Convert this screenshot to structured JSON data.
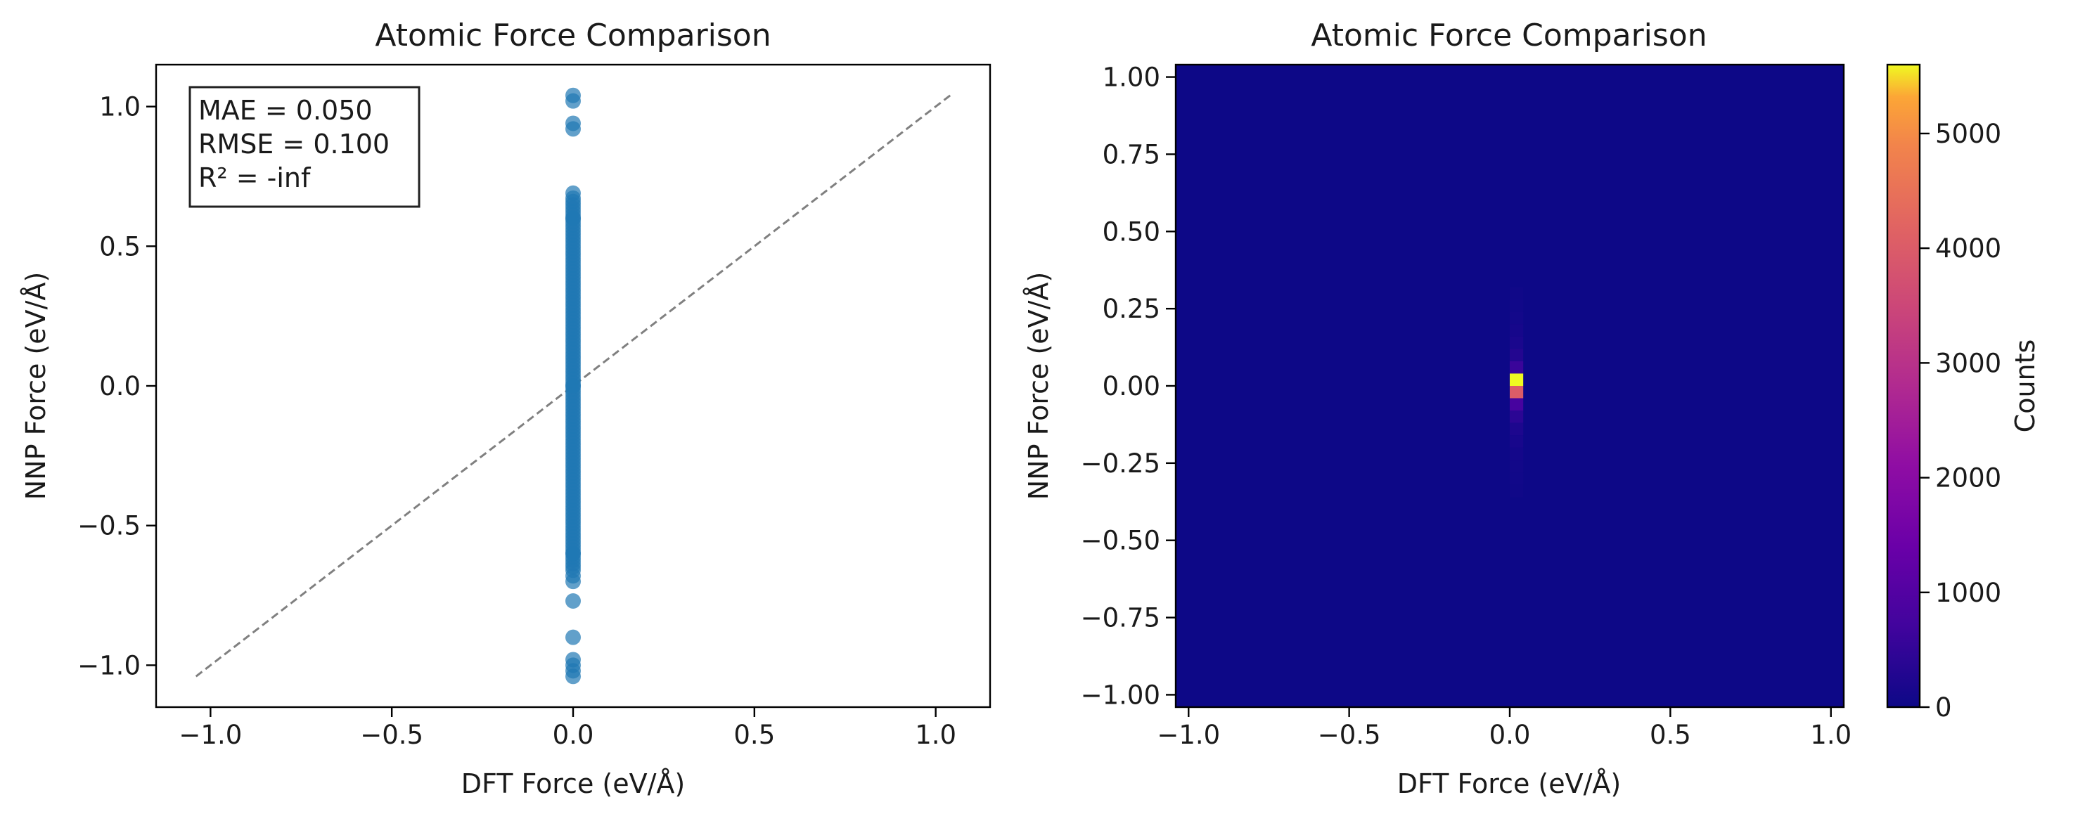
{
  "chart_data": [
    {
      "type": "scatter",
      "title": "Atomic Force Comparison",
      "xlabel": "DFT Force (eV/Å)",
      "ylabel": "NNP Force (eV/Å)",
      "xlim": [
        -1.15,
        1.15
      ],
      "ylim": [
        -1.15,
        1.15
      ],
      "xticks": [
        -1.0,
        -0.5,
        0.0,
        0.5,
        1.0
      ],
      "xtick_labels": [
        "−1.0",
        "−0.5",
        "0.0",
        "0.5",
        "1.0"
      ],
      "yticks": [
        -1.0,
        -0.5,
        0.0,
        0.5,
        1.0
      ],
      "ytick_labels": [
        "−1.0",
        "−0.5",
        "0.0",
        "0.5",
        "1.0"
      ],
      "point_color": "#1f77b4",
      "reference_line": {
        "x": [
          -1.04,
          1.04
        ],
        "y": [
          -1.04,
          1.04
        ],
        "color": "#808080",
        "style": "dashed"
      },
      "stats": [
        "MAE = 0.050",
        "RMSE = 0.100",
        "R² = -inf"
      ],
      "points": {
        "x": [
          0,
          0,
          0,
          0,
          0,
          0,
          0,
          0,
          0,
          0,
          0,
          0,
          0,
          0,
          0,
          0
        ],
        "y": [
          1.04,
          1.02,
          0.94,
          0.92,
          0.69,
          -0.68,
          -0.7,
          -0.77,
          -0.9,
          -0.98,
          -1.0,
          -1.02,
          -1.04,
          0.6,
          -0.6,
          0.0
        ]
      },
      "dense_band": {
        "x": 0,
        "y_from": -0.66,
        "y_to": 0.68
      }
    },
    {
      "type": "heatmap",
      "title": "Atomic Force Comparison",
      "xlabel": "DFT Force (eV/Å)",
      "ylabel": "NNP Force (eV/Å)",
      "xlim": [
        -1.04,
        1.04
      ],
      "ylim": [
        -1.04,
        1.04
      ],
      "xticks": [
        -1.0,
        -0.5,
        0.0,
        0.5,
        1.0
      ],
      "xtick_labels": [
        "−1.0",
        "−0.5",
        "0.0",
        "0.5",
        "1.0"
      ],
      "yticks": [
        1.0,
        0.75,
        0.5,
        0.25,
        0.0,
        -0.25,
        -0.5,
        -0.75,
        -1.0
      ],
      "ytick_labels": [
        "1.00",
        "0.75",
        "0.50",
        "0.25",
        "0.00",
        "−0.25",
        "−0.50",
        "−0.75",
        "−1.00"
      ],
      "colormap": "plasma",
      "background_color": "#0d0887",
      "bins_column": {
        "x_from": 0.0,
        "x_to": 0.042,
        "cells": [
          {
            "y_from": 0.28,
            "y_to": 0.32,
            "count": 40
          },
          {
            "y_from": 0.24,
            "y_to": 0.28,
            "count": 60
          },
          {
            "y_from": 0.2,
            "y_to": 0.24,
            "count": 80
          },
          {
            "y_from": 0.16,
            "y_to": 0.2,
            "count": 120
          },
          {
            "y_from": 0.12,
            "y_to": 0.16,
            "count": 180
          },
          {
            "y_from": 0.08,
            "y_to": 0.12,
            "count": 300
          },
          {
            "y_from": 0.04,
            "y_to": 0.08,
            "count": 600
          },
          {
            "y_from": 0.0,
            "y_to": 0.04,
            "count": 5600
          },
          {
            "y_from": -0.04,
            "y_to": 0.0,
            "count": 4000
          },
          {
            "y_from": -0.08,
            "y_to": -0.04,
            "count": 800
          },
          {
            "y_from": -0.12,
            "y_to": -0.08,
            "count": 400
          },
          {
            "y_from": -0.16,
            "y_to": -0.12,
            "count": 220
          },
          {
            "y_from": -0.2,
            "y_to": -0.16,
            "count": 150
          },
          {
            "y_from": -0.24,
            "y_to": -0.2,
            "count": 100
          },
          {
            "y_from": -0.28,
            "y_to": -0.24,
            "count": 70
          },
          {
            "y_from": -0.32,
            "y_to": -0.28,
            "count": 50
          },
          {
            "y_from": -0.36,
            "y_to": -0.32,
            "count": 35
          }
        ]
      },
      "colorbar": {
        "label": "Counts",
        "min": 0,
        "max": 5600,
        "ticks": [
          0,
          1000,
          2000,
          3000,
          4000,
          5000
        ],
        "tick_labels": [
          "0",
          "1000",
          "2000",
          "3000",
          "4000",
          "5000"
        ]
      }
    }
  ]
}
